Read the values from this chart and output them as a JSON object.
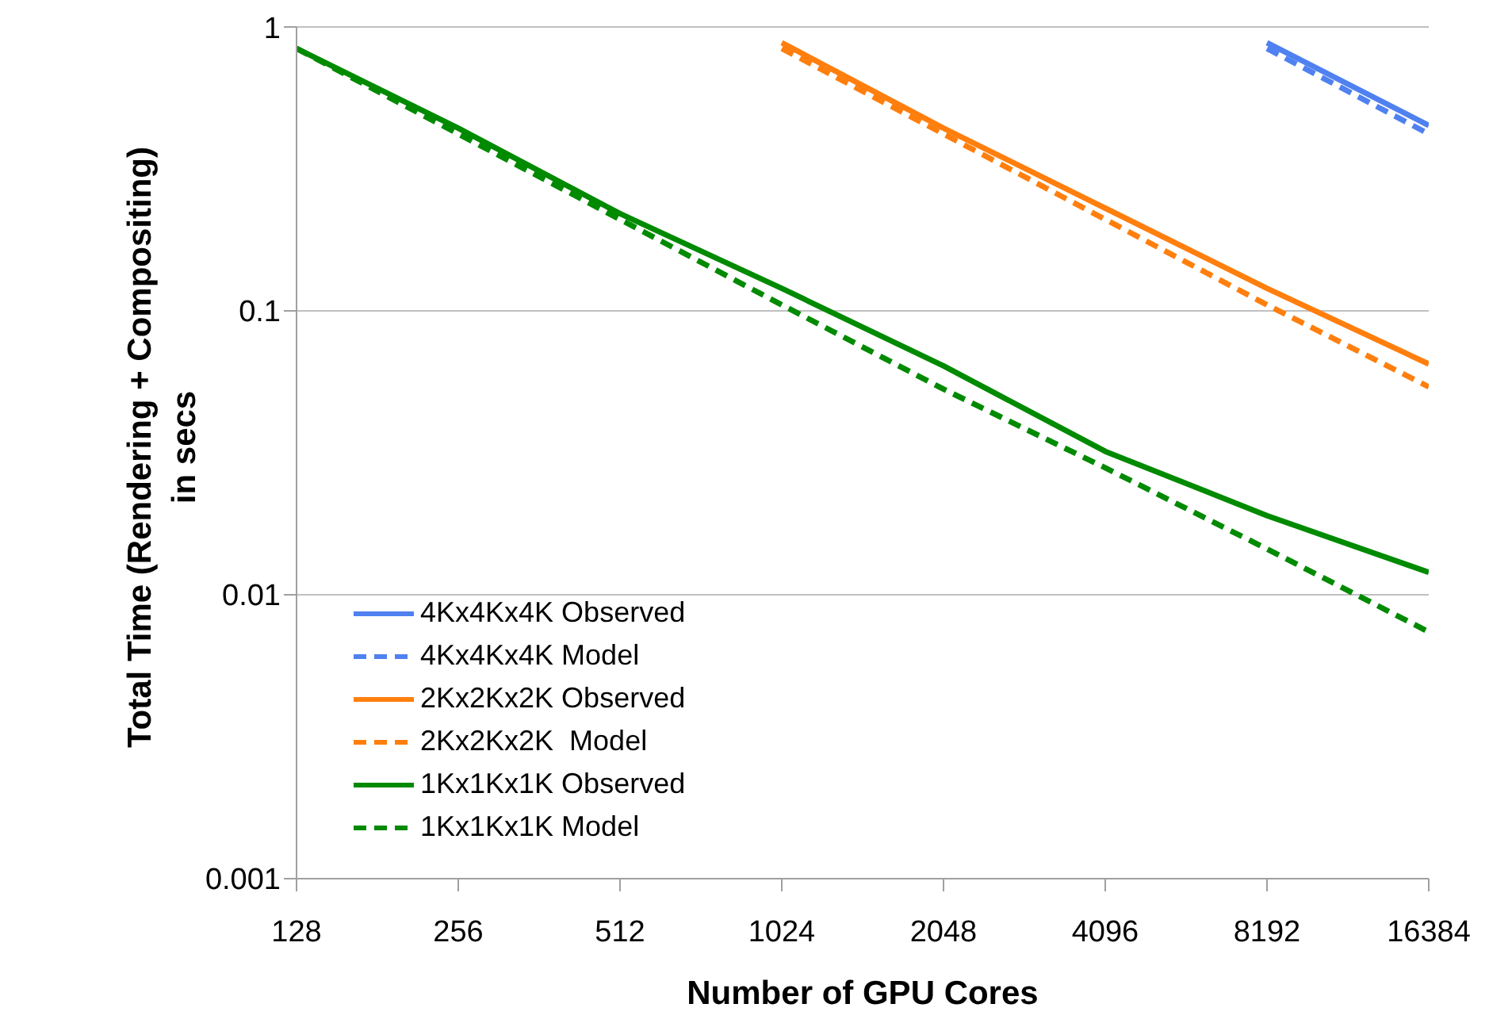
{
  "chart_data": {
    "type": "line",
    "xlabel": "Number of GPU Cores",
    "ylabel": "Total Time (Rendering + Compositing) in secs",
    "x": [
      128,
      256,
      512,
      1024,
      2048,
      4096,
      8192,
      16384
    ],
    "series": [
      {
        "name": "4Kx4Kx4K Observed",
        "color": "#4f81f0",
        "line_style": "solid",
        "values": [
          null,
          null,
          null,
          null,
          null,
          null,
          0.88,
          0.45
        ]
      },
      {
        "name": "4Kx4Kx4K Model",
        "color": "#4f81f0",
        "line_style": "dashed",
        "values": [
          null,
          null,
          null,
          null,
          null,
          null,
          0.84,
          0.42
        ]
      },
      {
        "name": "2Kx2Kx2K Observed",
        "color": "#ff7f0e",
        "line_style": "solid",
        "values": [
          null,
          null,
          null,
          0.88,
          0.44,
          0.23,
          0.12,
          0.065
        ]
      },
      {
        "name": "2Kx2Kx2K  Model",
        "color": "#ff7f0e",
        "line_style": "dashed",
        "values": [
          null,
          null,
          null,
          0.84,
          0.42,
          0.21,
          0.105,
          0.054
        ]
      },
      {
        "name": "1Kx1Kx1K Observed",
        "color": "#008a00",
        "line_style": "solid",
        "values": [
          0.84,
          0.44,
          0.22,
          0.12,
          0.064,
          0.032,
          0.019,
          0.012
        ]
      },
      {
        "name": "1Kx1Kx1K Model",
        "color": "#008a00",
        "line_style": "dashed",
        "values": [
          0.84,
          0.42,
          0.21,
          0.105,
          0.053,
          0.028,
          0.0145,
          0.0074
        ]
      }
    ],
    "log": "xy",
    "xlim": [
      128,
      16384
    ],
    "xticks": [
      128,
      256,
      512,
      1024,
      2048,
      4096,
      8192,
      16384
    ],
    "ylim": [
      0.001,
      1
    ],
    "yticks": [
      0.001,
      0.01,
      0.1,
      1
    ],
    "grid": "y",
    "legend": "bottom left",
    "marker": "none"
  }
}
